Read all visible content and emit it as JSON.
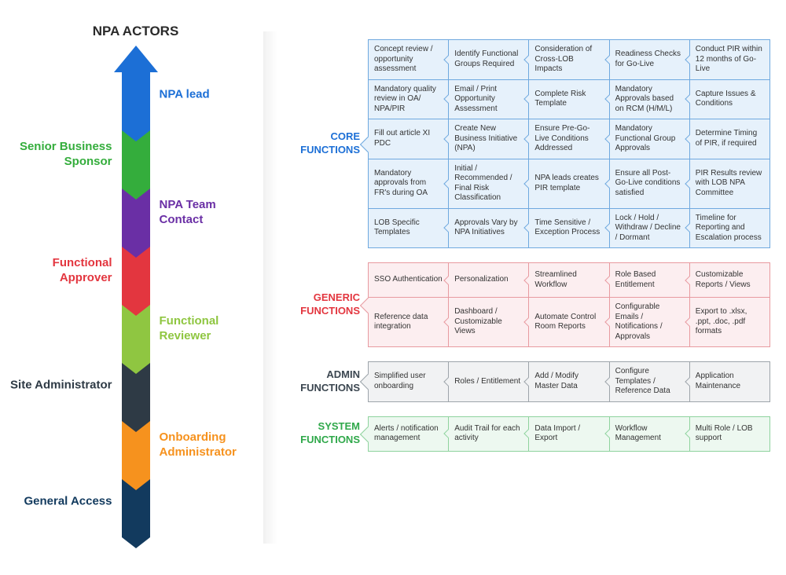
{
  "title": "NPA ACTORS",
  "actors": [
    {
      "label": "NPA lead",
      "side": "right",
      "color": "#1c6fd6",
      "text_color": "#1c6fd6"
    },
    {
      "label": "Senior Business Sponsor",
      "side": "left",
      "color": "#34ad3c",
      "text_color": "#34ad3c"
    },
    {
      "label": "NPA Team Contact",
      "side": "right",
      "color": "#6a2fa5",
      "text_color": "#6a2fa5"
    },
    {
      "label": "Functional Approver",
      "side": "left",
      "color": "#e3363f",
      "text_color": "#e3363f"
    },
    {
      "label": "Functional Reviewer",
      "side": "right",
      "color": "#8fc641",
      "text_color": "#8fc641"
    },
    {
      "label": "Site Administrator",
      "side": "left",
      "color": "#2e3a45",
      "text_color": "#2e3a45"
    },
    {
      "label": "Onboarding Administrator",
      "side": "right",
      "color": "#f6921e",
      "text_color": "#f6921e"
    },
    {
      "label": "General Access",
      "side": "left",
      "color": "#123a5e",
      "text_color": "#123a5e"
    }
  ],
  "arrow": {
    "head_height": 34,
    "segment_height": 74,
    "width": 36
  },
  "function_groups": [
    {
      "title": "CORE FUNCTIONS",
      "title_color": "#1c6fd6",
      "border_color": "#6fa9df",
      "bg_color": "#e6f1fb",
      "rows": 5,
      "cells": [
        "Concept review / opportunity assessment",
        "Identify Functional Groups Required",
        "Consideration of Cross-LOB Impacts",
        "Readiness Checks for Go-Live",
        "Conduct PIR within 12 months of Go-Live",
        "Mandatory quality review in OA/ NPA/PIR",
        "Email / Print Opportunity Assessment",
        "Complete Risk Template",
        "Mandatory Approvals based on RCM (H/M/L)",
        "Capture Issues & Conditions",
        "Fill out article XI PDC",
        "Create New Business Initiative (NPA)",
        "Ensure Pre-Go-Live Conditions Addressed",
        "Mandatory Functional Group Approvals",
        "Determine Timing of PIR, if required",
        "Mandatory approvals from FR's during OA",
        "Initial / Recommended / Final Risk Classification",
        "NPA leads creates PIR template",
        "Ensure all Post-Go-Live conditions satisfied",
        "PIR Results review with LOB NPA Committee",
        "LOB Specific Templates",
        "Approvals Vary by NPA Initiatives",
        "Time Sensitive / Exception Process",
        "Lock / Hold / Withdraw / Decline / Dormant",
        "Timeline for Reporting and Escalation process"
      ]
    },
    {
      "title": "GENERIC FUNCTIONS",
      "title_color": "#e3363f",
      "border_color": "#e89aa0",
      "bg_color": "#fceef0",
      "rows": 2,
      "cells": [
        "SSO Authentication",
        "Personalization",
        "Streamlined Workflow",
        "Role Based Entitlement",
        "Customizable Reports / Views",
        "Reference data integration",
        "Dashboard / Customizable Views",
        "Automate Control Room Reports",
        "Configurable Emails / Notifications / Approvals",
        "Export to .xlsx, .ppt, .doc, .pdf formats"
      ]
    },
    {
      "title": "ADMIN FUNCTIONS",
      "title_color": "#3b4650",
      "border_color": "#9da4aa",
      "bg_color": "#f1f2f3",
      "rows": 1,
      "cells": [
        "Simplified user onboarding",
        "Roles / Entitlement",
        "Add / Modify Master Data",
        "Configure Templates / Reference Data",
        "Application Maintenance"
      ]
    },
    {
      "title": "SYSTEM FUNCTIONS",
      "title_color": "#2fa84a",
      "border_color": "#8fd39e",
      "bg_color": "#edf8f0",
      "rows": 1,
      "cells": [
        "Alerts / notification management",
        "Audit Trail for each activity",
        "Data Import / Export",
        "Workflow Management",
        "Multi Role / LOB support"
      ]
    }
  ]
}
